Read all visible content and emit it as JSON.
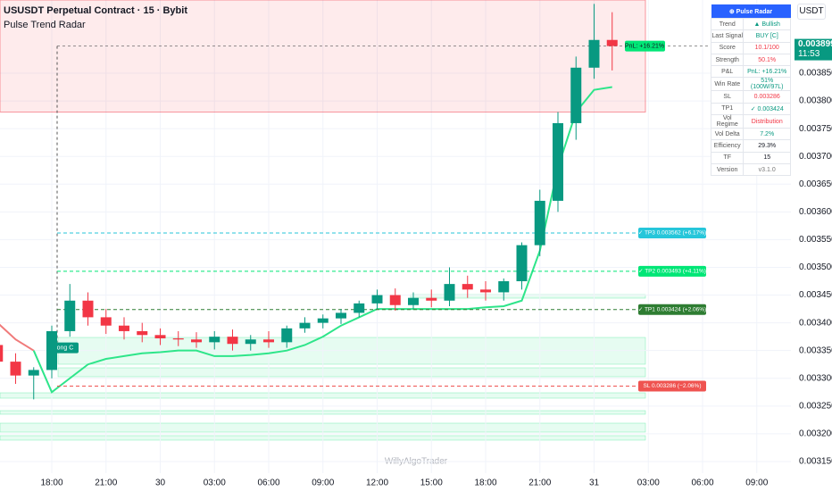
{
  "header": {
    "symbol": "USUSDT Perpetual Contract · 15 · Bybit",
    "indicator": "Pulse Trend Radar",
    "currency": "USDT",
    "countdown": "11:53",
    "watermark": "WillyAlgoTrader"
  },
  "chart_data": {
    "type": "candlestick",
    "categories": [
      null,
      null,
      null,
      "18:00",
      null,
      null,
      "21:00",
      null,
      null,
      "30",
      null,
      null,
      "03:00",
      null,
      null,
      "06:00",
      null,
      null,
      "09:00",
      null,
      null,
      "12:00",
      null,
      null,
      "15:00",
      null,
      null,
      "18:00",
      null,
      null,
      "21:00",
      null,
      null,
      "31",
      null
    ],
    "future_ticks": [
      "03:00",
      "06:00",
      "09:00"
    ],
    "open": [
      0.00336,
      0.00333,
      0.003305,
      0.003315,
      0.003385,
      0.00344,
      0.00341,
      0.003395,
      0.003385,
      0.003378,
      0.003372,
      0.00337,
      0.003365,
      0.003375,
      0.003362,
      0.00337,
      0.003365,
      0.00339,
      0.0034,
      0.003408,
      0.003418,
      0.003435,
      0.00345,
      0.003432,
      0.003445,
      0.00344,
      0.00347,
      0.00346,
      0.003455,
      0.003475,
      0.00354,
      0.00362,
      0.00376,
      0.00386,
      0.00391
    ],
    "high": [
      0.003372,
      0.003345,
      0.00332,
      0.003395,
      0.00347,
      0.003455,
      0.003425,
      0.00341,
      0.0034,
      0.00339,
      0.003385,
      0.003383,
      0.003385,
      0.003388,
      0.003378,
      0.003385,
      0.003395,
      0.00341,
      0.003415,
      0.003425,
      0.00344,
      0.00346,
      0.003462,
      0.003455,
      0.00346,
      0.0035,
      0.003485,
      0.003475,
      0.00348,
      0.003545,
      0.00364,
      0.00378,
      0.00388,
      0.003975,
      0.00396
    ],
    "low": [
      0.003318,
      0.00329,
      0.003262,
      0.0033,
      0.003375,
      0.003395,
      0.00338,
      0.00337,
      0.003365,
      0.00336,
      0.003358,
      0.003355,
      0.003352,
      0.00335,
      0.00335,
      0.003355,
      0.003355,
      0.003382,
      0.00339,
      0.003398,
      0.00341,
      0.003425,
      0.003422,
      0.003425,
      0.003428,
      0.00343,
      0.003445,
      0.00344,
      0.00344,
      0.00346,
      0.00352,
      0.0036,
      0.00373,
      0.00384,
      0.003855
    ],
    "close": [
      0.00333,
      0.003305,
      0.003315,
      0.003385,
      0.00344,
      0.00341,
      0.003395,
      0.003385,
      0.003378,
      0.003372,
      0.00337,
      0.003365,
      0.003375,
      0.003362,
      0.00337,
      0.003365,
      0.00339,
      0.0034,
      0.003408,
      0.003418,
      0.003435,
      0.00345,
      0.003432,
      0.003445,
      0.00344,
      0.00347,
      0.00346,
      0.003455,
      0.003475,
      0.00354,
      0.00362,
      0.00376,
      0.00386,
      0.00391,
      0.003899
    ],
    "trail": [
      0.0034,
      0.00337,
      0.00335,
      0.003275,
      0.0033,
      0.003325,
      0.003335,
      0.00334,
      0.003345,
      0.003347,
      0.00335,
      0.00335,
      0.00334,
      0.00334,
      0.003342,
      0.003345,
      0.00335,
      0.00336,
      0.003375,
      0.003395,
      0.00341,
      0.003425,
      0.003425,
      0.003425,
      0.003425,
      0.003425,
      0.003425,
      0.003428,
      0.00343,
      0.00344,
      0.00353,
      0.00368,
      0.00378,
      0.00382,
      0.003825
    ],
    "up_color": "#089981",
    "down_color": "#f23645",
    "bull_trail_color": "#2ee58a",
    "bear_trail_color": "#f07a7a",
    "last_price": 0.003899,
    "pnl_label": "PnL: +16.21%",
    "entry": {
      "label": "Long C",
      "value": 0.003355
    },
    "levels": [
      {
        "label": "✓ TP3 0.003562 (+6.17%)",
        "value": 0.003562,
        "color": "#26c6da"
      },
      {
        "label": "✓ TP2 0.003493 (+4.11%)",
        "value": 0.003493,
        "color": "#00e676"
      },
      {
        "label": "✓ TP1 0.003424 (+2.06%)",
        "value": 0.003424,
        "color": "#2e7d32"
      },
      {
        "label": "SL 0.003286 (−2.06%)",
        "value": 0.003286,
        "color": "#ef5350"
      }
    ],
    "resistance_zone": [
      0.00378,
      0.003982
    ],
    "ylim": [
      0.003129,
      0.003982
    ],
    "yticks": [
      {
        "value": 0.00385,
        "label": "0.003850"
      },
      {
        "value": 0.0038,
        "label": "0.003800"
      },
      {
        "value": 0.00375,
        "label": "0.003750"
      },
      {
        "value": 0.0037,
        "label": "0.003700"
      },
      {
        "value": 0.00365,
        "label": "0.003650"
      },
      {
        "value": 0.0036,
        "label": "0.003600"
      },
      {
        "value": 0.00355,
        "label": "0.003550"
      },
      {
        "value": 0.0035,
        "label": "0.003500"
      },
      {
        "value": 0.00345,
        "label": "0.003450"
      },
      {
        "value": 0.0034,
        "label": "0.003400"
      },
      {
        "value": 0.00335,
        "label": "0.003350"
      },
      {
        "value": 0.0033,
        "label": "0.003300"
      },
      {
        "value": 0.00325,
        "label": "0.003250"
      },
      {
        "value": 0.0032,
        "label": "0.003200"
      },
      {
        "value": 0.00315,
        "label": "0.003150"
      }
    ],
    "grid": true
  },
  "table": {
    "title": "⊕ Pulse Radar",
    "rows": [
      [
        "Trend",
        "▲ Bullish"
      ],
      [
        "Last Signal",
        "BUY [C]"
      ],
      [
        "Score",
        "10.1/100"
      ],
      [
        "Strength",
        "50.1%"
      ],
      [
        "P&L",
        "PnL: +16.21%"
      ],
      [
        "Win Rate",
        "51% (100W/97L)"
      ],
      [
        "SL",
        "0.003286"
      ],
      [
        "TP1",
        "✓ 0.003424"
      ],
      [
        "Vol Regime",
        "Distribution"
      ],
      [
        "Vol Delta",
        "7.2%"
      ],
      [
        "Efficiency",
        "29.3%"
      ],
      [
        "TF",
        "15"
      ],
      [
        "Version",
        "v3.1.0"
      ]
    ]
  }
}
